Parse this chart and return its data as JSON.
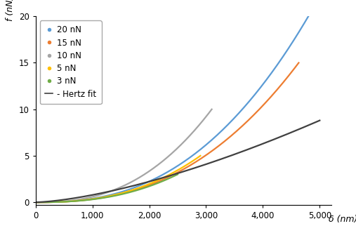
{
  "title": "",
  "xlabel": "δ (nm)",
  "ylabel": "f (nN)",
  "xlim": [
    0,
    5200
  ],
  "ylim": [
    -0.3,
    20
  ],
  "xticks": [
    0,
    1000,
    2000,
    3000,
    4000,
    5000
  ],
  "yticks": [
    0,
    5,
    10,
    15,
    20
  ],
  "curves": [
    {
      "label": "20 nN",
      "color": "#5B9BD5",
      "x_max": 4800,
      "f_max": 20,
      "exponent": 2.5
    },
    {
      "label": "15 nN",
      "color": "#ED7D31",
      "x_max": 4630,
      "f_max": 15,
      "exponent": 2.5
    },
    {
      "label": "10 nN",
      "color": "#A5A5A5",
      "x_max": 3100,
      "f_max": 10,
      "exponent": 2.5
    },
    {
      "label": "5 nN",
      "color": "#FFC000",
      "x_max": 2900,
      "f_max": 5,
      "exponent": 2.5
    },
    {
      "label": "3 nN",
      "color": "#70AD47",
      "x_max": 2500,
      "f_max": 3,
      "exponent": 2.5
    }
  ],
  "hertz": {
    "label": "- Hertz fit",
    "color": "#404040",
    "x_max": 5000,
    "f_max": 8.8,
    "exponent": 1.5
  },
  "legend_loc": "upper left",
  "background_color": "#FFFFFF",
  "linewidth": 1.6
}
